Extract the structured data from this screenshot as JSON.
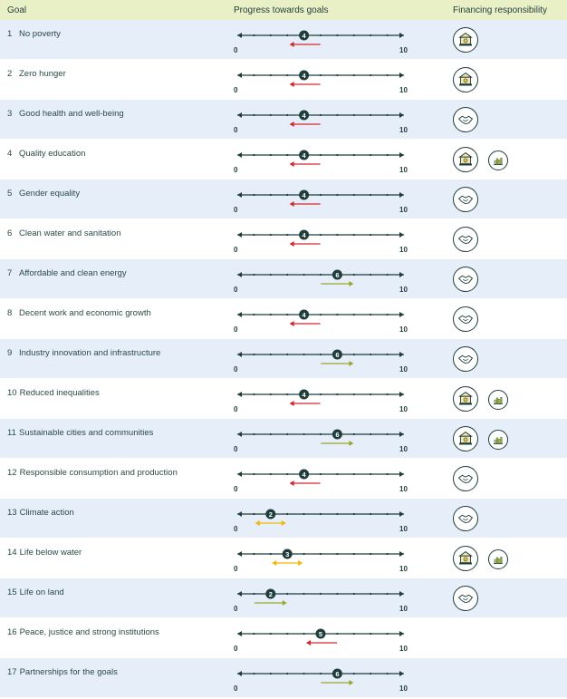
{
  "header": {
    "goal": "Goal",
    "progress": "Progress towards goals",
    "financing": "Financing responsibility"
  },
  "scale": {
    "min_label": "0",
    "max_label": "10",
    "min": 0,
    "max": 10
  },
  "colors": {
    "declining": "#d9262b",
    "improving": "#9aa82a",
    "stable": "#f2b705",
    "line": "#1f3d3a",
    "shade": "#e6eefa",
    "header": "#e9f0c6"
  },
  "rows": [
    {
      "num": "1",
      "label": "No poverty",
      "value": 4,
      "trend": "declining",
      "financing": [
        "bank-icon"
      ]
    },
    {
      "num": "2",
      "label": "Zero hunger",
      "value": 4,
      "trend": "declining",
      "financing": [
        "bank-icon"
      ]
    },
    {
      "num": "3",
      "label": "Good health and well-being",
      "value": 4,
      "trend": "declining",
      "financing": [
        "handshake-icon"
      ]
    },
    {
      "num": "4",
      "label": "Quality education",
      "value": 4,
      "trend": "declining",
      "financing": [
        "bank-icon",
        "bar-chart-icon"
      ]
    },
    {
      "num": "5",
      "label": "Gender equality",
      "value": 4,
      "trend": "declining",
      "financing": [
        "handshake-icon"
      ]
    },
    {
      "num": "6",
      "label": "Clean water and sanitation",
      "value": 4,
      "trend": "declining",
      "financing": [
        "handshake-icon"
      ]
    },
    {
      "num": "7",
      "label": "Affordable and clean energy",
      "value": 6,
      "trend": "improving",
      "financing": [
        "handshake-icon"
      ]
    },
    {
      "num": "8",
      "label": "Decent work and economic growth",
      "value": 4,
      "trend": "declining",
      "financing": [
        "handshake-icon"
      ]
    },
    {
      "num": "9",
      "label": "Industry innovation and infrastructure",
      "value": 6,
      "trend": "improving",
      "financing": [
        "handshake-icon"
      ]
    },
    {
      "num": "10",
      "label": "Reduced inequalities",
      "value": 4,
      "trend": "declining",
      "financing": [
        "bank-icon",
        "bar-chart-icon"
      ]
    },
    {
      "num": "11",
      "label": "Sustainable cities and communities",
      "value": 6,
      "trend": "improving",
      "financing": [
        "bank-icon",
        "bar-chart-icon"
      ]
    },
    {
      "num": "12",
      "label": "Responsible consumption and production",
      "value": 4,
      "trend": "declining",
      "financing": [
        "handshake-icon"
      ]
    },
    {
      "num": "13",
      "label": "Climate action",
      "value": 2,
      "trend": "stable",
      "financing": [
        "handshake-icon"
      ]
    },
    {
      "num": "14",
      "label": "Life below water",
      "value": 3,
      "trend": "stable",
      "financing": [
        "bank-icon",
        "bar-chart-icon"
      ]
    },
    {
      "num": "15",
      "label": "Life on land",
      "value": 2,
      "trend": "improving",
      "financing": [
        "handshake-icon"
      ]
    },
    {
      "num": "16",
      "label": "Peace, justice and strong institutions",
      "value": 5,
      "trend": "declining",
      "financing": []
    },
    {
      "num": "17",
      "label": "Partnerships for the goals",
      "value": 6,
      "trend": "improving",
      "financing": []
    }
  ]
}
